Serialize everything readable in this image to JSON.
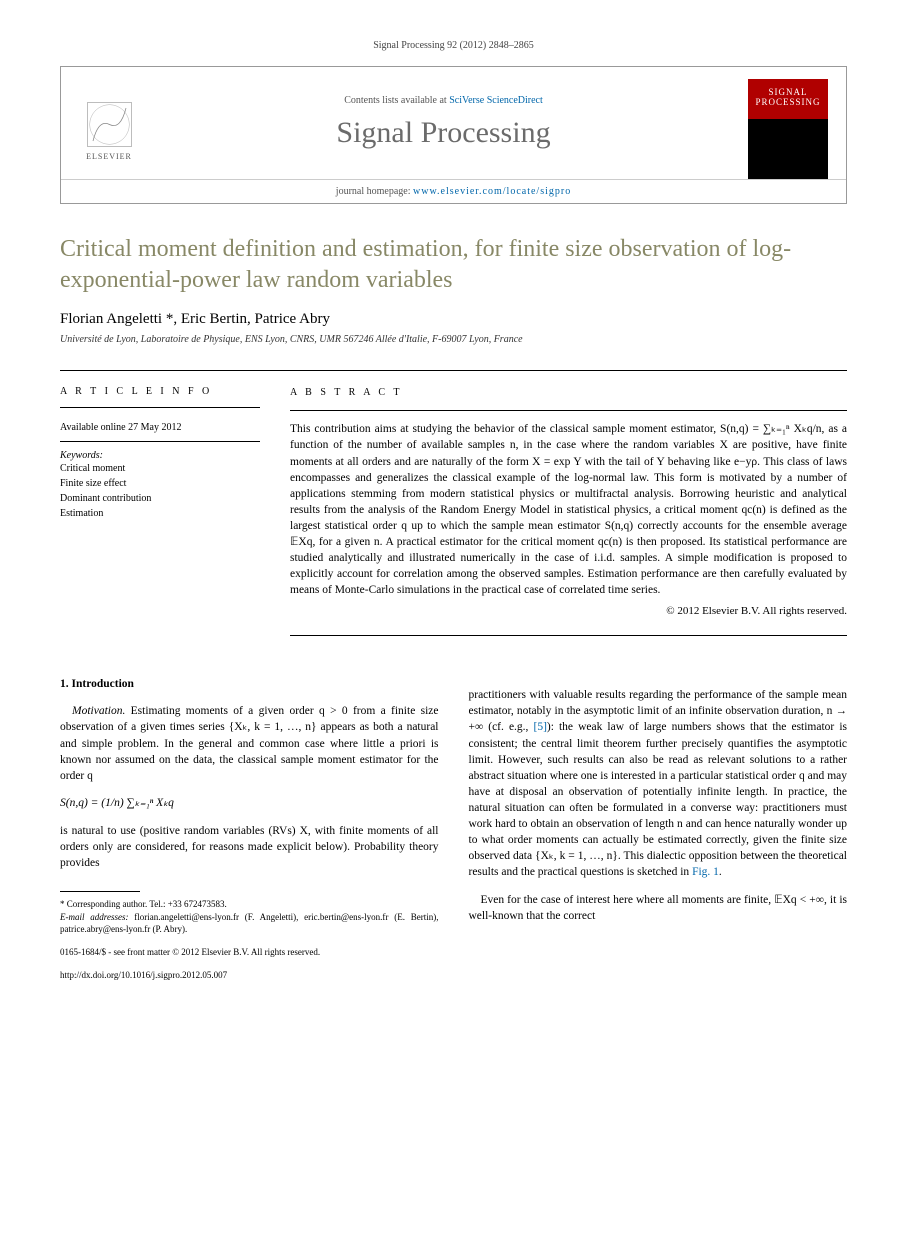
{
  "citation": "Signal Processing 92 (2012) 2848–2865",
  "header": {
    "contents_prefix": "Contents lists available at ",
    "contents_link": "SciVerse ScienceDirect",
    "journal_name": "Signal Processing",
    "homepage_prefix": "journal homepage: ",
    "homepage_url": "www.elsevier.com/locate/sigpro",
    "publisher": "ELSEVIER",
    "cover_text": "SIGNAL PROCESSING"
  },
  "title": "Critical moment definition and estimation, for finite size observation of log-exponential-power law random variables",
  "authors": "Florian Angeletti *, Eric Bertin, Patrice Abry",
  "affiliation": "Université de Lyon, Laboratoire de Physique, ENS Lyon, CNRS, UMR 567246 Allée d'Italie, F-69007 Lyon, France",
  "info": {
    "heading": "A R T I C L E  I N F O",
    "available": "Available online 27 May 2012",
    "keywords_head": "Keywords:",
    "keywords": [
      "Critical moment",
      "Finite size effect",
      "Dominant contribution",
      "Estimation"
    ]
  },
  "abstract": {
    "heading": "A B S T R A C T",
    "text": "This contribution aims at studying the behavior of the classical sample moment estimator, S(n,q) = ∑ₖ₌₁ⁿ Xₖq/n, as a function of the number of available samples n, in the case where the random variables X are positive, have finite moments at all orders and are naturally of the form X = exp Y with the tail of Y behaving like e−yρ. This class of laws encompasses and generalizes the classical example of the log-normal law. This form is motivated by a number of applications stemming from modern statistical physics or multifractal analysis. Borrowing heuristic and analytical results from the analysis of the Random Energy Model in statistical physics, a critical moment qc(n) is defined as the largest statistical order q up to which the sample mean estimator S(n,q) correctly accounts for the ensemble average 𝔼Xq, for a given n. A practical estimator for the critical moment qc(n) is then proposed. Its statistical performance are studied analytically and illustrated numerically in the case of i.i.d. samples. A simple modification is proposed to explicitly account for correlation among the observed samples. Estimation performance are then carefully evaluated by means of Monte-Carlo simulations in the practical case of correlated time series.",
    "copyright": "© 2012 Elsevier B.V. All rights reserved."
  },
  "body": {
    "section_head": "1. Introduction",
    "col1_p1_lead": "Motivation.",
    "col1_p1": " Estimating moments of a given order q > 0 from a finite size observation of a given times series {Xₖ, k = 1, …, n} appears as both a natural and simple problem. In the general and common case where little a priori is known nor assumed on the data, the classical sample moment estimator for the order q",
    "formula": "S(n,q) = (1/n) ∑ₖ₌₁ⁿ Xₖq",
    "col1_p2": "is natural to use (positive random variables (RVs) X, with finite moments of all orders only are considered, for reasons made explicit below). Probability theory provides",
    "col2_p1": "practitioners with valuable results regarding the performance of the sample mean estimator, notably in the asymptotic limit of an infinite observation duration, n → +∞ (cf. e.g., [5]): the weak law of large numbers shows that the estimator is consistent; the central limit theorem further precisely quantifies the asymptotic limit. However, such results can also be read as relevant solutions to a rather abstract situation where one is interested in a particular statistical order q and may have at disposal an observation of potentially infinite length. In practice, the natural situation can often be formulated in a converse way: practitioners must work hard to obtain an observation of length n and can hence naturally wonder up to what order moments can actually be estimated correctly, given the finite size observed data {Xₖ, k = 1, …, n}. This dialectic opposition between the theoretical results and the practical questions is sketched in Fig. 1.",
    "col2_p2": "Even for the case of interest here where all moments are finite, 𝔼Xq < +∞, it is well-known that the correct"
  },
  "footnotes": {
    "corresponding": "* Corresponding author. Tel.: +33 672473583.",
    "email_label": "E-mail addresses:",
    "emails": " florian.angeletti@ens-lyon.fr (F. Angeletti), eric.bertin@ens-lyon.fr (E. Bertin), patrice.abry@ens-lyon.fr (P. Abry).",
    "front_matter": "0165-1684/$ - see front matter © 2012 Elsevier B.V. All rights reserved.",
    "doi": "http://dx.doi.org/10.1016/j.sigpro.2012.05.007"
  },
  "colors": {
    "title_color": "#888866",
    "link_color": "#0066aa",
    "journal_gray": "#6b6b6b",
    "cover_red": "#b00000"
  }
}
